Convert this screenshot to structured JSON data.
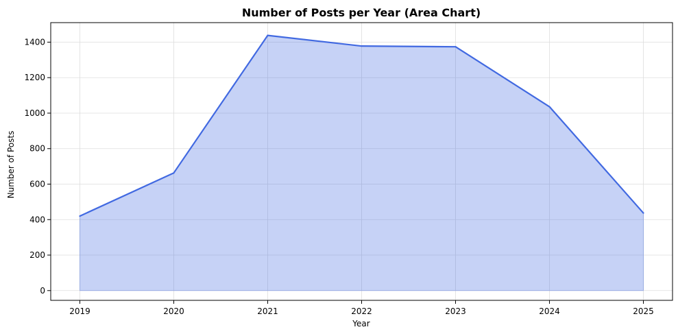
{
  "chart_data": {
    "type": "area",
    "title": "Number of Posts per Year (Area Chart)",
    "xlabel": "Year",
    "ylabel": "Number of Posts",
    "x": [
      2019,
      2020,
      2021,
      2022,
      2023,
      2024,
      2025
    ],
    "series": [
      {
        "values": [
          420,
          663,
          1438,
          1378,
          1374,
          1036,
          437
        ]
      }
    ],
    "xlim": [
      2018.69,
      2025.31
    ],
    "ylim": [
      -55,
      1510
    ],
    "xticks": [
      "2019",
      "2020",
      "2021",
      "2022",
      "2023",
      "2024",
      "2025"
    ],
    "yticks": [
      0,
      200,
      400,
      600,
      800,
      1000,
      1200,
      1400
    ],
    "grid": true,
    "colors": {
      "line": "#4169e1",
      "fill": "#4169e1",
      "fill_opacity": 0.3,
      "grid": "#dddddd"
    }
  }
}
